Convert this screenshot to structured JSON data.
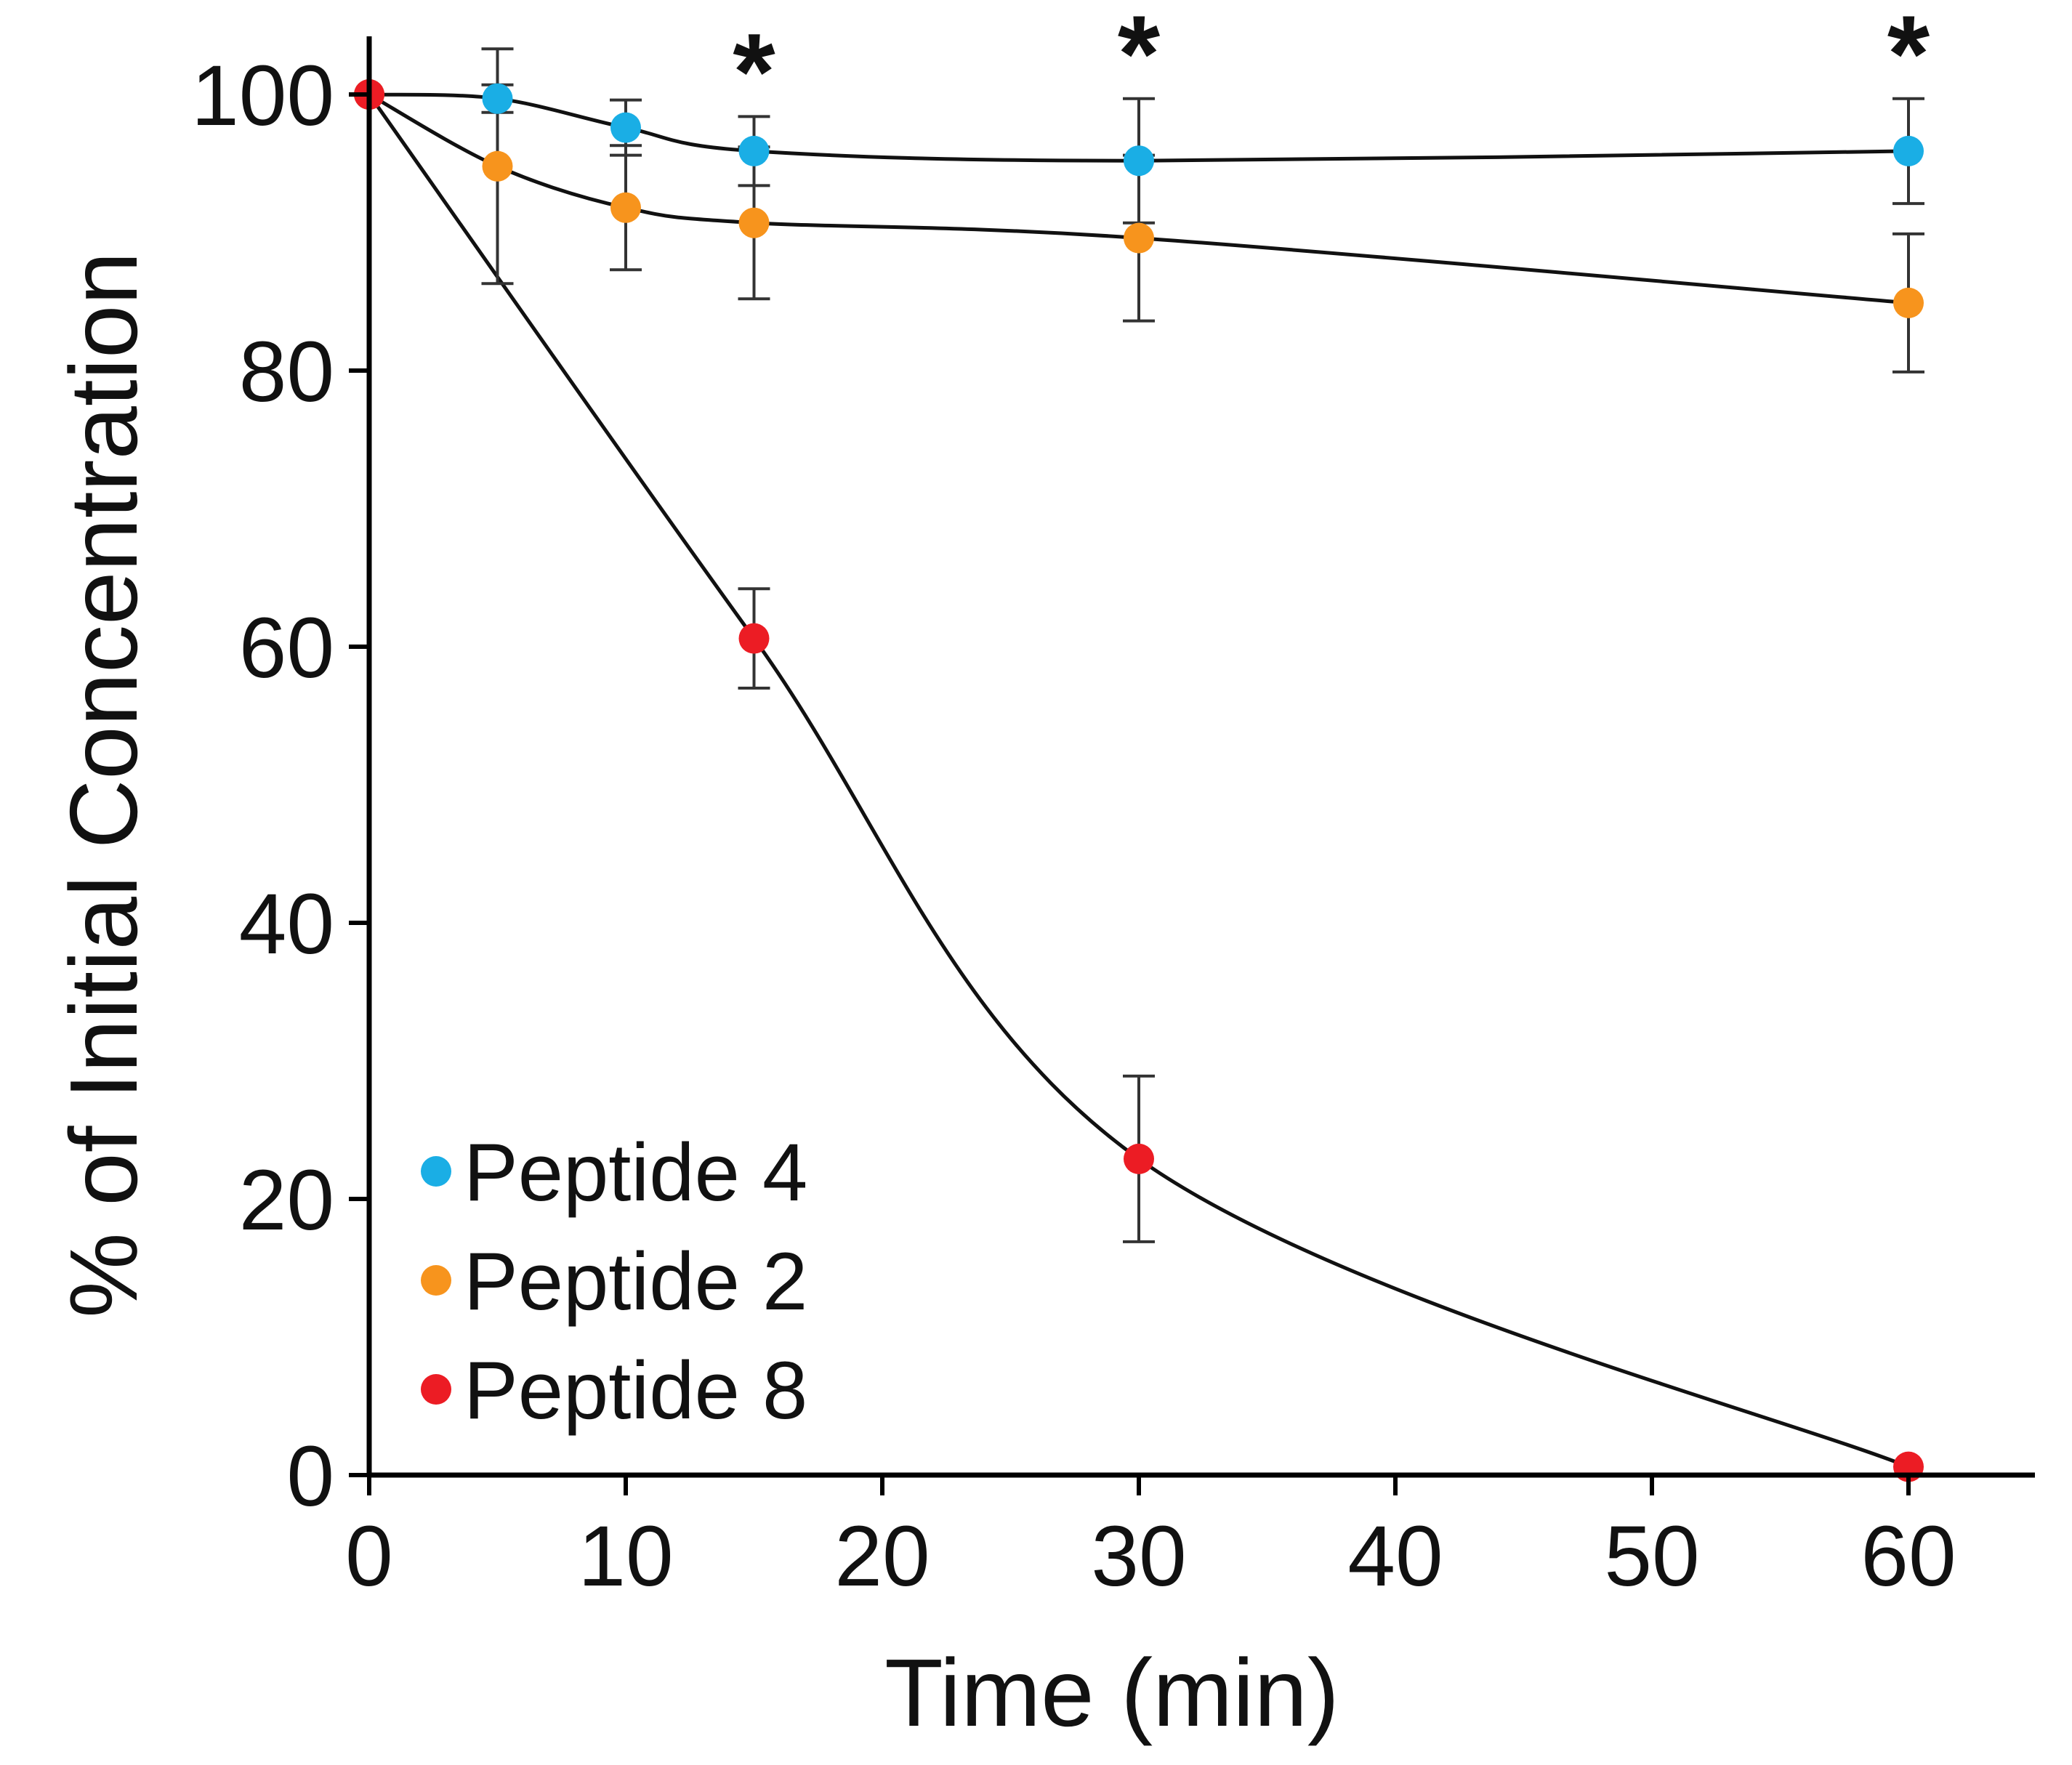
{
  "chart_data": {
    "type": "line",
    "xlabel": "Time (min)",
    "ylabel": "% of Initial Concentration",
    "xlim": [
      0,
      65
    ],
    "ylim": [
      0,
      100
    ],
    "xticks": [
      0,
      10,
      20,
      30,
      40,
      50,
      60
    ],
    "yticks": [
      0,
      20,
      40,
      60,
      80,
      100
    ],
    "grid": false,
    "legend_position": "bottom-left",
    "series": [
      {
        "name": "Peptide 4",
        "color": "#1aaee5",
        "points": [
          {
            "x": 0,
            "y": 100
          },
          {
            "x": 5,
            "y": 99.7,
            "err": 1
          },
          {
            "x": 10,
            "y": 97.6,
            "err": 2
          },
          {
            "x": 15,
            "y": 95.9,
            "err": 2.5
          },
          {
            "x": 30,
            "y": 95.2,
            "err": 4.5
          },
          {
            "x": 60,
            "y": 95.9,
            "err": 3.8
          }
        ]
      },
      {
        "name": "Peptide 2",
        "color": "#f7941d",
        "points": [
          {
            "x": 0,
            "y": 100
          },
          {
            "x": 5,
            "y": 94.8,
            "err": 8.5
          },
          {
            "x": 10,
            "y": 91.8,
            "err": 4.5
          },
          {
            "x": 15,
            "y": 90.7,
            "err": 5.5
          },
          {
            "x": 30,
            "y": 89.6,
            "err": 6
          },
          {
            "x": 60,
            "y": 84.9,
            "err": 5
          }
        ]
      },
      {
        "name": "Peptide 8",
        "color": "#ec1c24",
        "points": [
          {
            "x": 0,
            "y": 100
          },
          {
            "x": 15,
            "y": 60.6,
            "err": 3.6
          },
          {
            "x": 30,
            "y": 22.9,
            "err": 6
          },
          {
            "x": 60,
            "y": 0.6
          }
        ]
      }
    ],
    "annotations": [
      {
        "x": 15,
        "text": "*"
      },
      {
        "x": 30,
        "text": "*"
      },
      {
        "x": 60,
        "text": "*"
      }
    ]
  }
}
